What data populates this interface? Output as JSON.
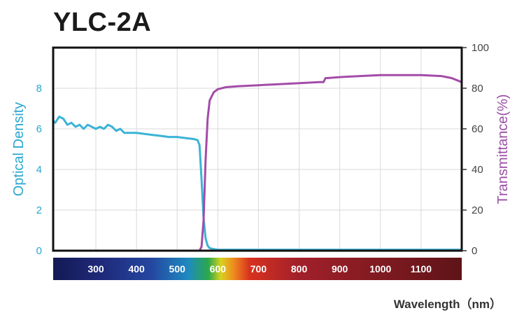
{
  "chart_data": {
    "type": "line",
    "title": "YLC-2A",
    "xlabel": "Wavelength（nm）",
    "ylabel_left": "Optical Density",
    "ylabel_right": "Transmittance(%)",
    "xlim": [
      195,
      1200
    ],
    "ylim_left": [
      0,
      10
    ],
    "ylim_right": [
      0,
      100
    ],
    "left_ticks": [
      "0",
      "2",
      "4",
      "6",
      "8"
    ],
    "right_ticks": [
      "0",
      "20",
      "40",
      "60",
      "80",
      "100"
    ],
    "spectrum_labels": [
      "300",
      "400",
      "500",
      "600",
      "700",
      "800",
      "900",
      "1000",
      "1100"
    ],
    "grid": true,
    "colors": {
      "optical_density": "#3bb3d6",
      "transmittance": "#a34ca8",
      "left_axis": "#2aa6cf",
      "right_axis": "#9b4fa6",
      "frame": "#111111",
      "grid": "#d9d9d9"
    },
    "series": [
      {
        "name": "Optical Density",
        "axis": "left",
        "x": [
          195,
          200,
          210,
          220,
          230,
          240,
          250,
          260,
          270,
          280,
          290,
          300,
          310,
          320,
          330,
          340,
          350,
          360,
          370,
          380,
          390,
          400,
          420,
          440,
          460,
          480,
          500,
          520,
          540,
          550,
          555,
          560,
          565,
          570,
          575,
          580,
          590,
          600,
          650,
          700,
          800,
          900,
          1000,
          1100,
          1200
        ],
        "y": [
          6.4,
          6.3,
          6.6,
          6.5,
          6.2,
          6.3,
          6.1,
          6.2,
          6.0,
          6.2,
          6.1,
          6.0,
          6.1,
          6.0,
          6.2,
          6.1,
          5.9,
          6.0,
          5.8,
          5.8,
          5.8,
          5.8,
          5.75,
          5.7,
          5.65,
          5.6,
          5.6,
          5.55,
          5.5,
          5.45,
          5.2,
          3.5,
          1.6,
          0.6,
          0.25,
          0.12,
          0.08,
          0.05,
          0.05,
          0.05,
          0.05,
          0.05,
          0.05,
          0.05,
          0.05
        ]
      },
      {
        "name": "Transmittance",
        "axis": "right",
        "x": [
          555,
          560,
          565,
          570,
          575,
          580,
          590,
          600,
          620,
          650,
          700,
          750,
          800,
          850,
          860,
          865,
          870,
          900,
          950,
          1000,
          1050,
          1100,
          1150,
          1175,
          1200
        ],
        "y": [
          0,
          2,
          15,
          45,
          65,
          74,
          78,
          79.5,
          80.5,
          81,
          81.5,
          82,
          82.5,
          83,
          83,
          85,
          85,
          85.5,
          86,
          86.5,
          86.5,
          86.5,
          86,
          85,
          83
        ]
      }
    ]
  }
}
